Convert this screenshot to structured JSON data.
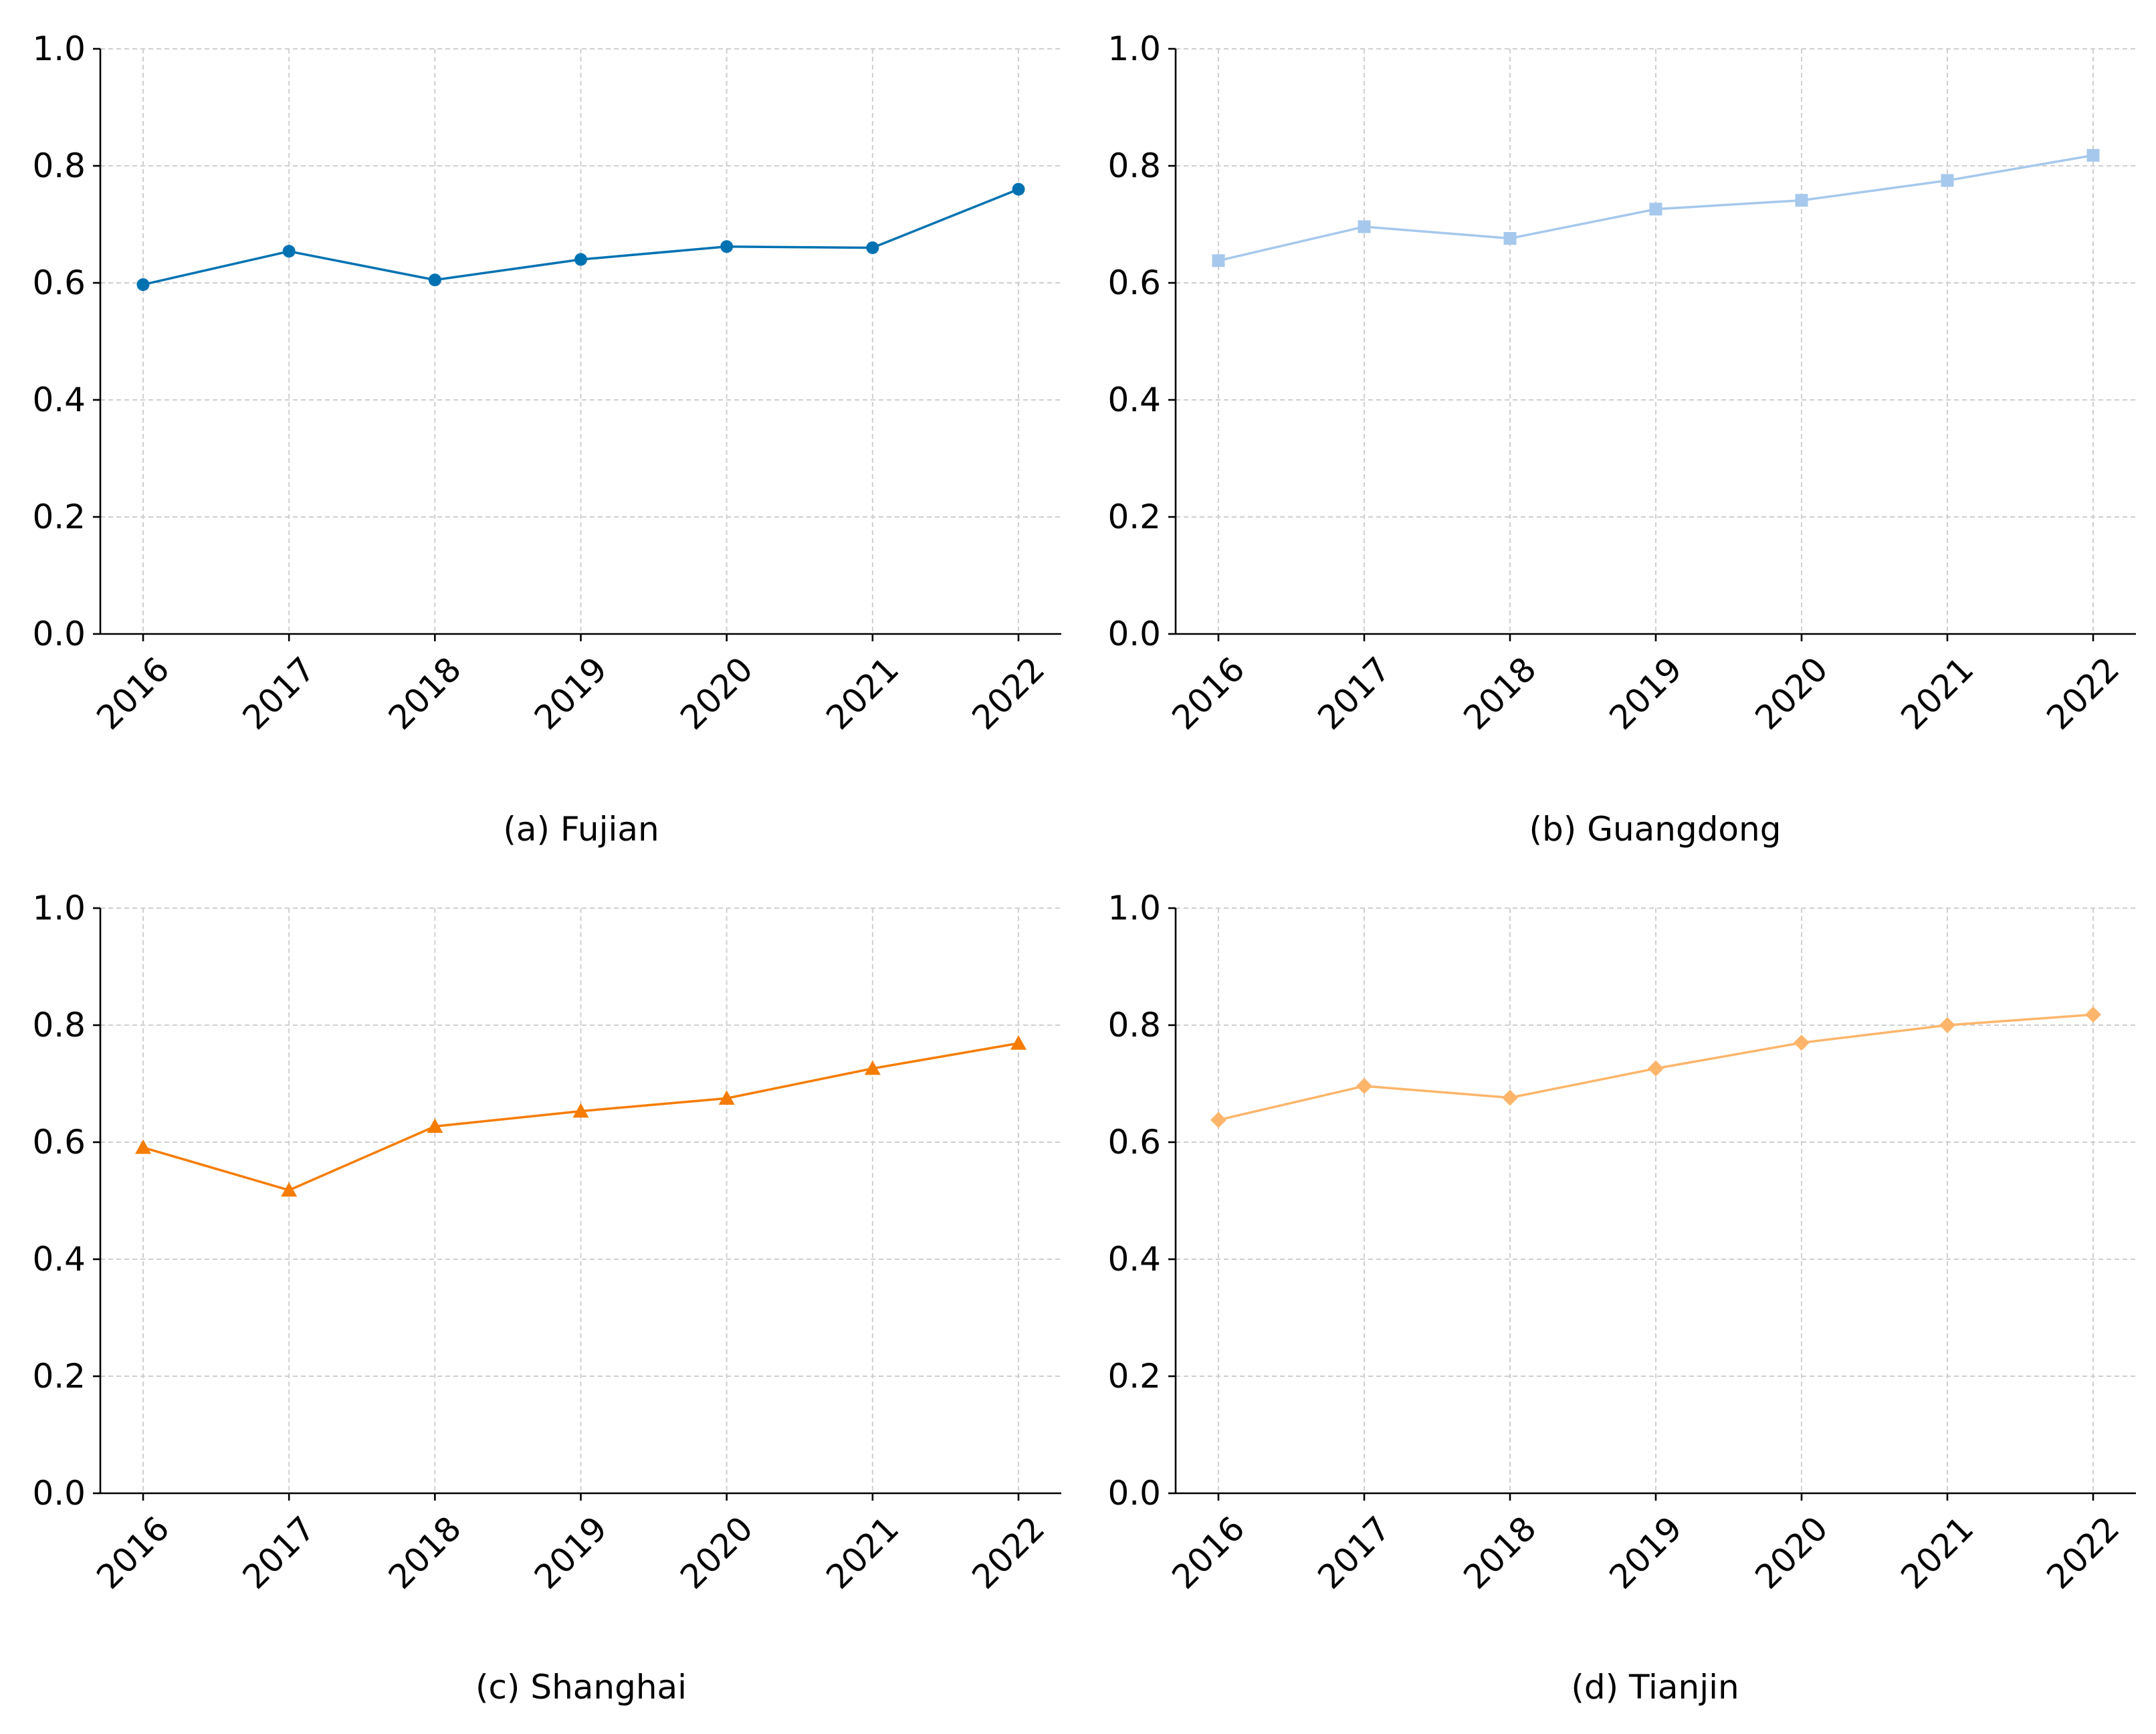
{
  "chart_data": [
    {
      "type": "line",
      "caption": "(a) Fujian",
      "x": [
        "2016",
        "2017",
        "2018",
        "2019",
        "2020",
        "2021",
        "2022"
      ],
      "values": [
        0.597,
        0.654,
        0.605,
        0.64,
        0.662,
        0.66,
        0.76
      ],
      "ylim": [
        0.0,
        1.0
      ],
      "yticks": [
        "0.0",
        "0.2",
        "0.4",
        "0.6",
        "0.8",
        "1.0"
      ],
      "grid": true,
      "color": "#0072b2",
      "marker": "circle"
    },
    {
      "type": "line",
      "caption": "(b) Guangdong",
      "x": [
        "2016",
        "2017",
        "2018",
        "2019",
        "2020",
        "2021",
        "2022"
      ],
      "values": [
        0.638,
        0.696,
        0.676,
        0.726,
        0.741,
        0.775,
        0.818
      ],
      "ylim": [
        0.0,
        1.0
      ],
      "yticks": [
        "0.0",
        "0.2",
        "0.4",
        "0.6",
        "0.8",
        "1.0"
      ],
      "grid": true,
      "color": "#a6c8ec",
      "marker": "square"
    },
    {
      "type": "line",
      "caption": "(c) Shanghai",
      "x": [
        "2016",
        "2017",
        "2018",
        "2019",
        "2020",
        "2021",
        "2022"
      ],
      "values": [
        0.591,
        0.518,
        0.627,
        0.653,
        0.675,
        0.726,
        0.769
      ],
      "ylim": [
        0.0,
        1.0
      ],
      "yticks": [
        "0.0",
        "0.2",
        "0.4",
        "0.6",
        "0.8",
        "1.0"
      ],
      "grid": true,
      "color": "#f57c00",
      "marker": "triangle"
    },
    {
      "type": "line",
      "caption": "(d) Tianjin",
      "x": [
        "2016",
        "2017",
        "2018",
        "2019",
        "2020",
        "2021",
        "2022"
      ],
      "values": [
        0.638,
        0.696,
        0.676,
        0.726,
        0.77,
        0.8,
        0.818
      ],
      "ylim": [
        0.0,
        1.0
      ],
      "yticks": [
        "0.0",
        "0.2",
        "0.4",
        "0.6",
        "0.8",
        "1.0"
      ],
      "grid": true,
      "color": "#fdb56b",
      "marker": "diamond"
    }
  ]
}
